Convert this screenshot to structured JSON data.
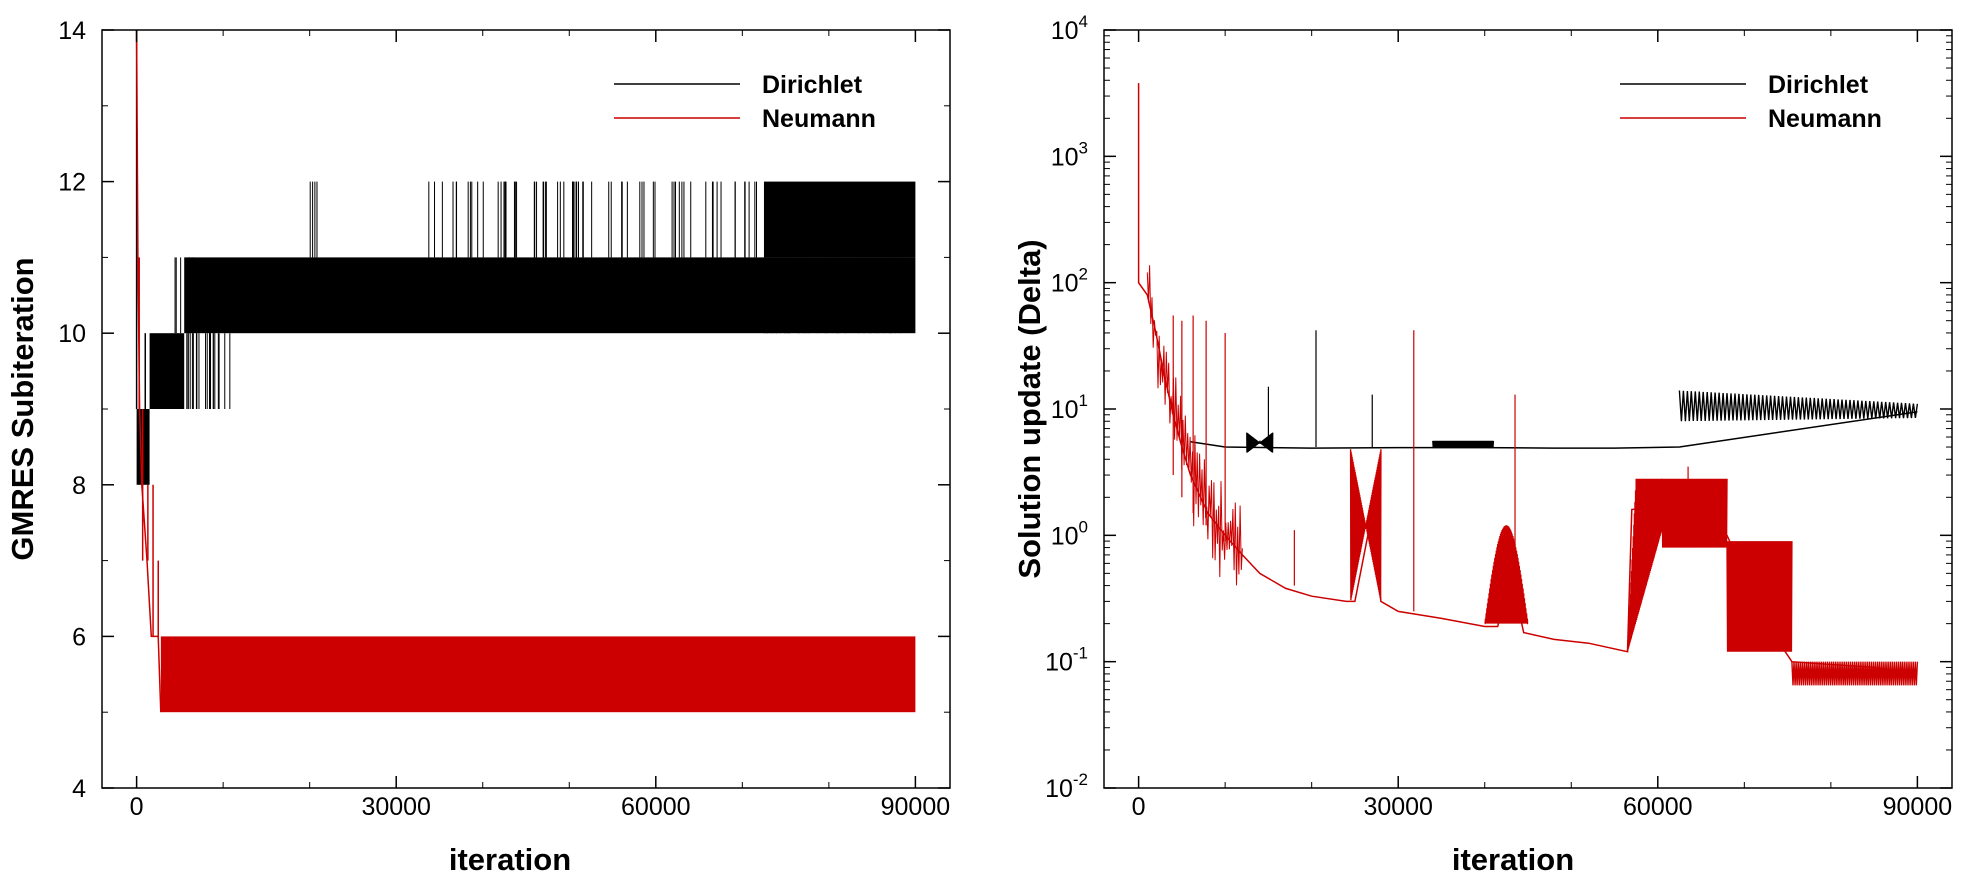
{
  "colors": {
    "dirichlet": "#000000",
    "neumann": "#cc0000"
  },
  "chart_data": [
    {
      "type": "line",
      "xlabel": "iteration",
      "ylabel": "GMRES Subiteration",
      "xlim": [
        -4000,
        94000
      ],
      "ylim": [
        4,
        14
      ],
      "xticks": [
        0,
        30000,
        60000,
        90000
      ],
      "xtick_labels": [
        "0",
        "30000",
        "60000",
        "90000"
      ],
      "yticks": [
        4,
        6,
        8,
        10,
        12,
        14
      ],
      "ytick_labels": [
        "4",
        "6",
        "8",
        "10",
        "12",
        "14"
      ],
      "ytick_minor": [
        5,
        7,
        9,
        11,
        13
      ],
      "grid": false,
      "legend_position": "top-right",
      "series": [
        {
          "name": "Dirichlet",
          "color": "#000000",
          "bands": [
            {
              "x0": 0,
              "x1": 1500,
              "lo": 8,
              "hi": 9
            },
            {
              "x0": 1500,
              "x1": 5500,
              "lo": 9,
              "hi": 10
            },
            {
              "x0": 5500,
              "x1": 90000,
              "lo": 10,
              "hi": 11
            },
            {
              "x0": 72500,
              "x1": 90000,
              "lo": 11,
              "hi": 12
            }
          ],
          "spikes": [
            {
              "x": 0,
              "lo": 9,
              "hi": 14
            },
            {
              "x": 1000,
              "lo": 9,
              "hi": 10
            },
            {
              "x": 6500,
              "lo": 10,
              "hi": 11
            }
          ],
          "spike_clusters": [
            {
              "x0": 5500,
              "x1": 11500,
              "lo": 9,
              "hi": 10,
              "count": 22
            },
            {
              "x0": 4200,
              "x1": 6200,
              "lo": 10,
              "hi": 11,
              "count": 6
            },
            {
              "x0": 19500,
              "x1": 21500,
              "lo": 11,
              "hi": 12,
              "count": 4
            },
            {
              "x0": 33500,
              "x1": 72000,
              "lo": 11,
              "hi": 12,
              "count": 70
            },
            {
              "x0": 72500,
              "x1": 90000,
              "lo": 10,
              "hi": 11,
              "count": 40
            }
          ]
        },
        {
          "name": "Neumann",
          "color": "#cc0000",
          "bands": [
            {
              "x0": 2800,
              "x1": 90000,
              "lo": 5,
              "hi": 6
            }
          ],
          "steps": [
            [
              0,
              14
            ],
            [
              150,
              11
            ],
            [
              350,
              9
            ],
            [
              600,
              8
            ],
            [
              1200,
              7
            ],
            [
              1700,
              6
            ],
            [
              2500,
              6
            ],
            [
              2800,
              5
            ]
          ],
          "spikes": [
            {
              "x": 300,
              "lo": 9,
              "hi": 11
            },
            {
              "x": 700,
              "lo": 7,
              "hi": 9
            },
            {
              "x": 1300,
              "lo": 7,
              "hi": 8
            },
            {
              "x": 1900,
              "lo": 6,
              "hi": 8
            },
            {
              "x": 2500,
              "lo": 6,
              "hi": 7
            }
          ]
        }
      ]
    },
    {
      "type": "line",
      "xlabel": "iteration",
      "ylabel": "Solution update (Delta)",
      "yscale": "log",
      "xlim": [
        -4000,
        94000
      ],
      "ylim": [
        0.01,
        10000
      ],
      "xticks": [
        0,
        30000,
        60000,
        90000
      ],
      "xtick_labels": [
        "0",
        "30000",
        "60000",
        "90000"
      ],
      "yticks": [
        0.01,
        0.1,
        1,
        10,
        100,
        1000,
        10000
      ],
      "ytick_base": [
        "10",
        "10",
        "10",
        "10",
        "10",
        "10",
        "10"
      ],
      "ytick_exp": [
        "-2",
        "-1",
        "0",
        "1",
        "2",
        "3",
        "4"
      ],
      "grid": false,
      "legend_position": "top-right",
      "series": [
        {
          "name": "Dirichlet",
          "color": "#000000",
          "points": [
            [
              6000,
              5.5
            ],
            [
              10000,
              5.0
            ],
            [
              20000,
              4.9
            ],
            [
              30000,
              4.95
            ],
            [
              40000,
              4.95
            ],
            [
              48000,
              4.9
            ],
            [
              55000,
              4.9
            ],
            [
              62500,
              5.0
            ],
            [
              90000,
              9.5
            ]
          ],
          "envelopes": [
            {
              "x0": 12500,
              "x1": 15500,
              "lo": 4.5,
              "hi": 6.5,
              "shape": "bowtie"
            },
            {
              "x0": 34000,
              "x1": 41000,
              "lo": 4.9,
              "hi": 5.6,
              "shape": "band"
            },
            {
              "x0": 62500,
              "x1": 90000,
              "lo": 8.0,
              "hi": 14.0,
              "shape": "decay",
              "hi_end": 11.0,
              "lo_end": 8.5
            }
          ],
          "spikes": [
            {
              "x": 20500,
              "lo": 5,
              "hi": 42
            },
            {
              "x": 15000,
              "lo": 5,
              "hi": 15
            },
            {
              "x": 27000,
              "lo": 5,
              "hi": 13
            }
          ]
        },
        {
          "name": "Neumann",
          "color": "#cc0000",
          "points": [
            [
              0,
              3800
            ],
            [
              0,
              100
            ],
            [
              1000,
              80
            ],
            [
              2000,
              40
            ],
            [
              3000,
              18
            ],
            [
              4000,
              9
            ],
            [
              5000,
              5
            ],
            [
              6000,
              3.0
            ],
            [
              8000,
              1.5
            ],
            [
              10000,
              1.0
            ],
            [
              12000,
              0.7
            ],
            [
              14000,
              0.5
            ],
            [
              17000,
              0.38
            ],
            [
              20000,
              0.33
            ],
            [
              24000,
              0.3
            ],
            [
              25000,
              0.3
            ],
            [
              27000,
              1.5
            ],
            [
              28000,
              0.3
            ],
            [
              30000,
              0.25
            ],
            [
              35000,
              0.22
            ],
            [
              40000,
              0.19
            ],
            [
              41500,
              0.19
            ],
            [
              43000,
              0.5
            ],
            [
              44500,
              0.17
            ],
            [
              48000,
              0.15
            ],
            [
              52000,
              0.14
            ],
            [
              56500,
              0.12
            ],
            [
              57000,
              1.6
            ],
            [
              63000,
              1.8
            ],
            [
              68000,
              1.0
            ],
            [
              70000,
              0.5
            ],
            [
              73000,
              0.18
            ],
            [
              75500,
              0.1
            ],
            [
              80000,
              0.095
            ],
            [
              85000,
              0.09
            ],
            [
              90000,
              0.08
            ]
          ],
          "envelopes": [
            {
              "x0": 24500,
              "x1": 28000,
              "lo": 0.3,
              "hi": 4.8,
              "shape": "bowtie"
            },
            {
              "x0": 40000,
              "x1": 45000,
              "lo": 0.2,
              "hi": 1.2,
              "shape": "hump"
            },
            {
              "x0": 56500,
              "x1": 60500,
              "lo": 0.12,
              "hi": 2.8,
              "shape": "rise"
            },
            {
              "x0": 60500,
              "x1": 68000,
              "lo": 0.8,
              "hi": 2.8,
              "shape": "band"
            },
            {
              "x0": 68000,
              "x1": 75500,
              "lo": 0.12,
              "hi": 0.9,
              "shape": "band"
            },
            {
              "x0": 75500,
              "x1": 90000,
              "lo": 0.065,
              "hi": 0.1,
              "shape": "band"
            }
          ],
          "spikes": [
            {
              "x": 4000,
              "lo": 3,
              "hi": 55
            },
            {
              "x": 5000,
              "lo": 2,
              "hi": 50
            },
            {
              "x": 6300,
              "lo": 1.5,
              "hi": 55
            },
            {
              "x": 7800,
              "lo": 1.2,
              "hi": 50
            },
            {
              "x": 10000,
              "lo": 0.9,
              "hi": 40
            },
            {
              "x": 18000,
              "lo": 0.4,
              "hi": 1.1
            },
            {
              "x": 31800,
              "lo": 0.25,
              "hi": 42
            },
            {
              "x": 43500,
              "lo": 0.3,
              "hi": 13
            },
            {
              "x": 63500,
              "lo": 0.8,
              "hi": 3.5
            }
          ],
          "noise": {
            "x0": 1000,
            "x1": 12000,
            "lo_factor": 0.4,
            "hi_factor": 2.5,
            "count": 80
          }
        }
      ]
    }
  ]
}
